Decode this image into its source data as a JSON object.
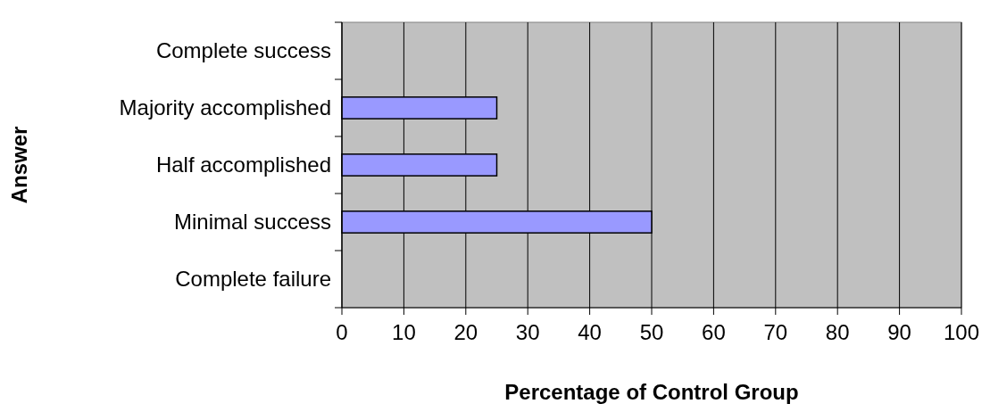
{
  "chart_data": {
    "type": "bar",
    "orientation": "horizontal",
    "categories": [
      "Complete success",
      "Majority accomplished",
      "Half accomplished",
      "Minimal success",
      "Complete failure"
    ],
    "values": [
      0,
      25,
      25,
      50,
      0
    ],
    "color": "#9999ff",
    "xlim": [
      0,
      100
    ],
    "xticks": [
      0,
      10,
      20,
      30,
      40,
      50,
      60,
      70,
      80,
      90,
      100
    ],
    "xlabel": "Percentage of Control Group",
    "ylabel": "Answer",
    "grid": "x"
  }
}
